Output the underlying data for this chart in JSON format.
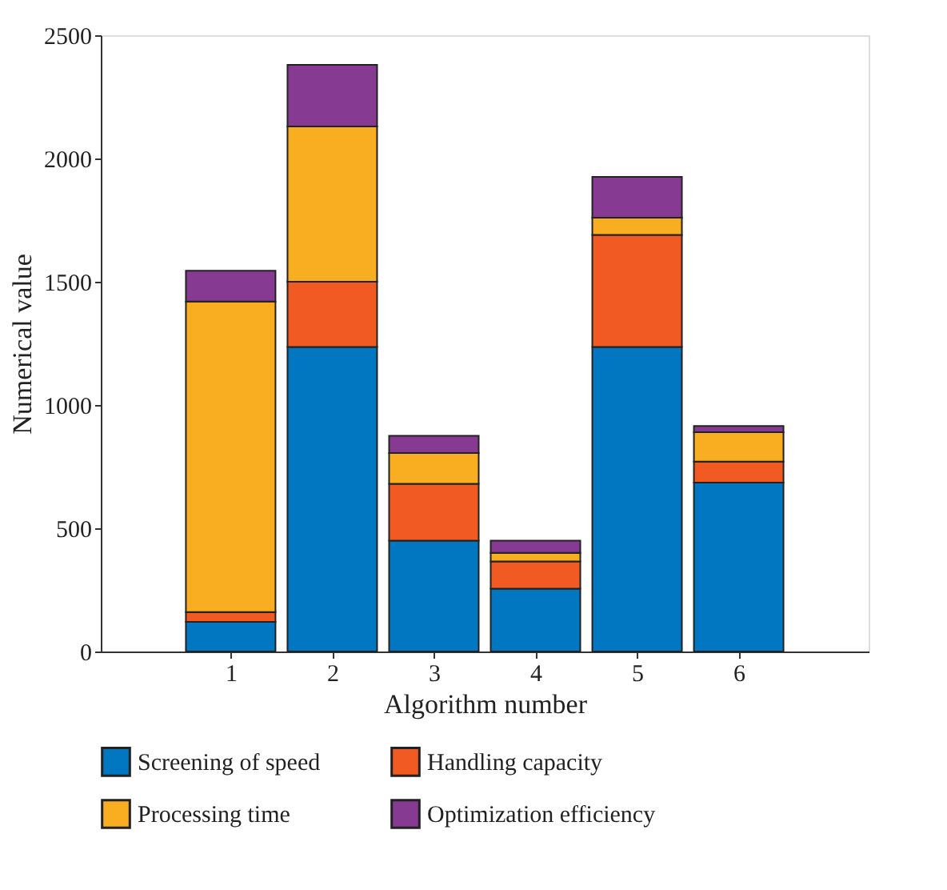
{
  "chart_data": {
    "type": "bar",
    "stacked": true,
    "xlabel": "Algorithm number",
    "ylabel": "Numerical value",
    "categories": [
      "1",
      "2",
      "3",
      "4",
      "5",
      "6"
    ],
    "series": [
      {
        "name": "Screening of speed",
        "color": "#0077c0",
        "values": [
          120,
          1235,
          450,
          255,
          1235,
          685
        ]
      },
      {
        "name": "Handling capacity",
        "color": "#f15a22",
        "values": [
          40,
          265,
          230,
          110,
          455,
          85
        ]
      },
      {
        "name": "Processing time",
        "color": "#f9ad21",
        "values": [
          1260,
          630,
          125,
          35,
          70,
          120
        ]
      },
      {
        "name": "Optimization efficiency",
        "color": "#863a91",
        "values": [
          125,
          250,
          70,
          50,
          165,
          25
        ]
      }
    ],
    "ylim": [
      0,
      2500
    ],
    "yticks": [
      0,
      500,
      1000,
      1500,
      2000,
      2500
    ],
    "grid": false,
    "legend": "bottom"
  }
}
